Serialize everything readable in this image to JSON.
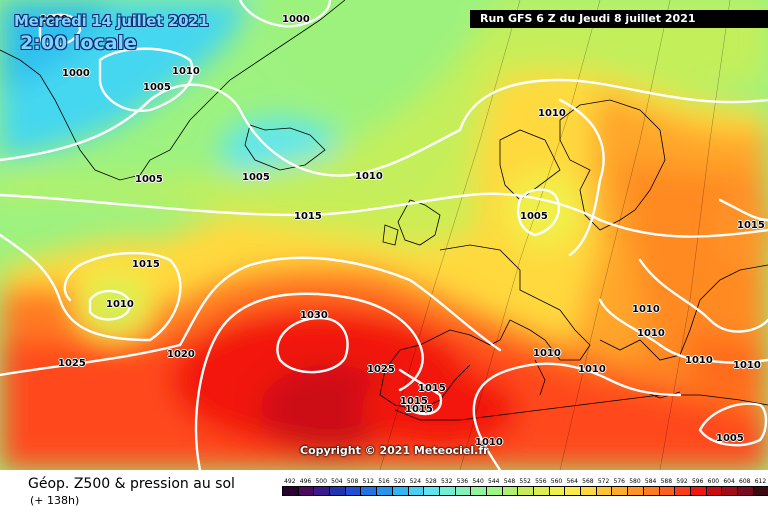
{
  "header": {
    "date": "Mercredi 14 juillet 2021",
    "time": "2:00 locale",
    "run": "Run GFS 6 Z du Jeudi 8 juillet 2021"
  },
  "copyright": "Copyright © 2021 Meteociel.fr",
  "footer": {
    "title": "Géop. Z500 & pression au sol",
    "subtitle": "(+ 138h)"
  },
  "legend": {
    "labels": [
      "492",
      "496",
      "500",
      "504",
      "508",
      "512",
      "516",
      "520",
      "524",
      "528",
      "532",
      "536",
      "540",
      "544",
      "548",
      "552",
      "556",
      "560",
      "564",
      "568",
      "572",
      "576",
      "580",
      "584",
      "588",
      "592",
      "596",
      "600",
      "604",
      "608",
      "612"
    ],
    "colors": [
      "#2a0033",
      "#4b0a5e",
      "#3a1a8c",
      "#2233b0",
      "#1f4fd6",
      "#1f74e8",
      "#2596f0",
      "#2fb6f5",
      "#45d1f5",
      "#5fe3ec",
      "#6ff0d5",
      "#7ff3ba",
      "#8ef59d",
      "#9df783",
      "#b0f06a",
      "#c7ec58",
      "#dcee4d",
      "#eef047",
      "#fbe946",
      "#ffd93c",
      "#ffc433",
      "#ffac2b",
      "#ff9326",
      "#ff7a21",
      "#ff5e1d",
      "#ff3a17",
      "#f21410",
      "#cc0a12",
      "#a30a1a",
      "#7a0a1e",
      "#3a0a10"
    ]
  },
  "isobars": [
    {
      "text": "1000",
      "hi": false
    },
    {
      "text": "1000",
      "hi": false
    },
    {
      "text": "1000",
      "hi": false
    },
    {
      "text": "1005",
      "hi": false
    },
    {
      "text": "1010",
      "hi": false
    },
    {
      "text": "1005",
      "hi": false
    },
    {
      "text": "1005",
      "hi": false
    },
    {
      "text": "1010",
      "hi": false
    },
    {
      "text": "1010",
      "hi": false
    },
    {
      "text": "1015",
      "hi": false
    },
    {
      "text": "1005",
      "hi": false
    },
    {
      "text": "1015",
      "hi": false
    },
    {
      "text": "1010",
      "hi": false
    },
    {
      "text": "1015",
      "hi": false
    },
    {
      "text": "1020",
      "hi": false
    },
    {
      "text": "1025",
      "hi": false
    },
    {
      "text": "1030",
      "hi": false
    },
    {
      "text": "1025",
      "hi": false
    },
    {
      "text": "1015",
      "hi": false
    },
    {
      "text": "1015",
      "hi": false
    },
    {
      "text": "1015",
      "hi": false
    },
    {
      "text": "1010",
      "hi": false
    },
    {
      "text": "1010",
      "hi": false
    },
    {
      "text": "1010",
      "hi": false
    },
    {
      "text": "1010",
      "hi": false
    },
    {
      "text": "1010",
      "hi": false
    },
    {
      "text": "1010",
      "hi": false
    },
    {
      "text": "1010",
      "hi": false
    },
    {
      "text": "1005",
      "hi": false
    }
  ]
}
